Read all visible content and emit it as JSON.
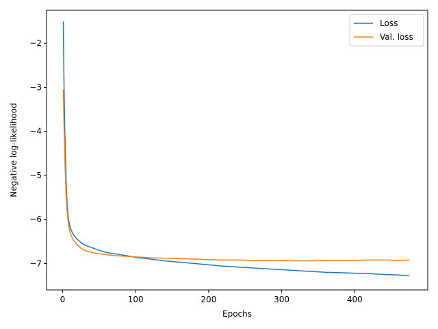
{
  "chart_data": {
    "type": "line",
    "title": "",
    "xlabel": "Epochs",
    "ylabel": "Negative log-likelihood",
    "xlim": [
      -22,
      500
    ],
    "ylim": [
      -7.6,
      -1.25
    ],
    "xticks": [
      0,
      100,
      200,
      300,
      400
    ],
    "yticks": [
      -2,
      -3,
      -4,
      -5,
      -6,
      -7
    ],
    "xtick_labels": [
      "0",
      "100",
      "200",
      "300",
      "400"
    ],
    "ytick_labels": [
      "−2",
      "−3",
      "−4",
      "−5",
      "−6",
      "−7"
    ],
    "grid": false,
    "legend_position": "top-right",
    "series": [
      {
        "name": "Loss",
        "color": "#1f77b4",
        "x": [
          1,
          2,
          3,
          4,
          5,
          6,
          8,
          10,
          12,
          15,
          20,
          25,
          30,
          40,
          50,
          60,
          70,
          80,
          90,
          100,
          120,
          140,
          160,
          180,
          200,
          220,
          240,
          260,
          280,
          300,
          320,
          340,
          360,
          380,
          400,
          420,
          440,
          460,
          475
        ],
        "y": [
          -1.5,
          -3.0,
          -4.0,
          -4.6,
          -5.2,
          -5.6,
          -6.0,
          -6.15,
          -6.25,
          -6.35,
          -6.45,
          -6.52,
          -6.58,
          -6.64,
          -6.7,
          -6.75,
          -6.78,
          -6.8,
          -6.83,
          -6.86,
          -6.9,
          -6.94,
          -6.97,
          -7.0,
          -7.03,
          -7.06,
          -7.08,
          -7.1,
          -7.12,
          -7.14,
          -7.16,
          -7.18,
          -7.2,
          -7.21,
          -7.22,
          -7.23,
          -7.25,
          -7.26,
          -7.28
        ]
      },
      {
        "name": "Val. loss",
        "color": "#ff7f0e",
        "x": [
          1,
          2,
          3,
          4,
          5,
          6,
          8,
          10,
          12,
          15,
          20,
          25,
          30,
          40,
          50,
          60,
          70,
          80,
          90,
          100,
          120,
          140,
          160,
          180,
          200,
          220,
          240,
          260,
          280,
          300,
          320,
          340,
          360,
          380,
          400,
          420,
          440,
          460,
          475
        ],
        "y": [
          -3.05,
          -3.9,
          -4.6,
          -5.1,
          -5.5,
          -5.8,
          -6.1,
          -6.28,
          -6.38,
          -6.48,
          -6.58,
          -6.65,
          -6.7,
          -6.75,
          -6.78,
          -6.8,
          -6.82,
          -6.83,
          -6.84,
          -6.85,
          -6.87,
          -6.88,
          -6.89,
          -6.9,
          -6.91,
          -6.92,
          -6.92,
          -6.93,
          -6.93,
          -6.93,
          -6.94,
          -6.94,
          -6.93,
          -6.93,
          -6.93,
          -6.92,
          -6.92,
          -6.93,
          -6.92
        ]
      }
    ]
  }
}
